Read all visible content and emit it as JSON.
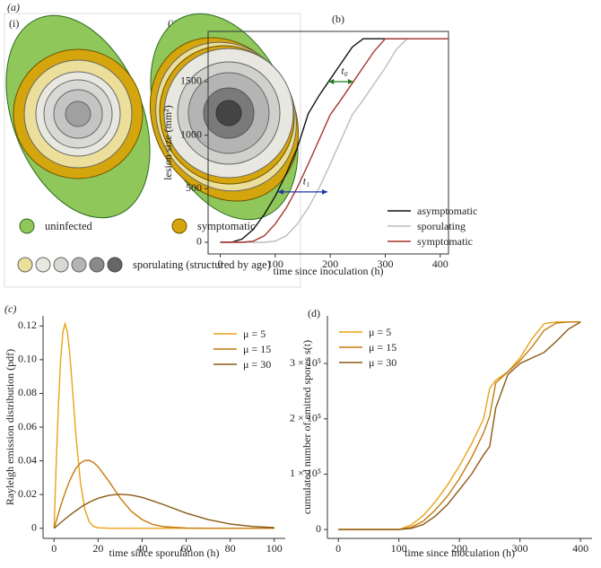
{
  "diagram": {
    "panel_label": "(a)",
    "sub_labels": [
      "(i)",
      "(ii)"
    ],
    "legend": [
      "uninfected",
      "symptomatic",
      "sporulating (structured by age)"
    ]
  },
  "chart_data": [
    {
      "type": "line",
      "panel_label": "(b)",
      "xlabel": "time since inoculation (h)",
      "ylabel": "lesion size (mm²)",
      "xlim": [
        -22,
        415
      ],
      "ylim": [
        -109,
        1969
      ],
      "xticks": [
        0,
        100,
        200,
        300,
        400
      ],
      "yticks": [
        0,
        500,
        1000,
        1500
      ],
      "frame": true,
      "legend": "lower right",
      "x": [
        0,
        20,
        40,
        60,
        80,
        100,
        120,
        140,
        160,
        180,
        200,
        220,
        240,
        260,
        280,
        300,
        320,
        340,
        360,
        380,
        400,
        415
      ],
      "series": [
        {
          "name": "asymptomatic",
          "color": "#111111",
          "values": [
            0,
            0,
            30,
            120,
            260,
            430,
            640,
            880,
            1200,
            1372,
            1522,
            1672,
            1822,
            1900,
            1900,
            1900,
            1900,
            1900,
            1900,
            1900,
            1900,
            1900
          ]
        },
        {
          "name": "sporulating",
          "color": "#bdbdbd",
          "values": [
            0,
            0,
            0,
            0,
            0,
            10,
            60,
            170,
            320,
            510,
            730,
            960,
            1190,
            1330,
            1480,
            1630,
            1800,
            1900,
            1900,
            1900,
            1900,
            1900
          ]
        },
        {
          "name": "symptomatic",
          "color": "#a8352e",
          "values": [
            0,
            0,
            0,
            10,
            60,
            170,
            320,
            510,
            730,
            960,
            1190,
            1335,
            1485,
            1635,
            1785,
            1900,
            1900,
            1900,
            1900,
            1900,
            1900,
            1900
          ]
        }
      ],
      "annotations": [
        {
          "text": "t₀",
          "color": "#1f7a1f",
          "x": [
            197,
            242
          ],
          "y": 1500
        },
        {
          "text": "t₁",
          "color": "#2233aa",
          "x": [
            105,
            195
          ],
          "y": 470
        }
      ]
    },
    {
      "type": "line",
      "panel_label": "(c)",
      "xlabel": "time since sporulation (h)",
      "ylabel": "Rayleigh emission distribution (pdf)",
      "xlim": [
        -5,
        105
      ],
      "ylim": [
        -0.006,
        0.126
      ],
      "xticks": [
        0,
        20,
        40,
        60,
        80,
        100
      ],
      "yticks": [
        0,
        0.02,
        0.04,
        0.06,
        0.08,
        {
          "value": 0.1,
          "label": "0.10"
        },
        0.12
      ],
      "frame": false,
      "legend": "upper right",
      "x": [
        0,
        1,
        2,
        3,
        4,
        5,
        6,
        7,
        8,
        9,
        10,
        12,
        14,
        16,
        18,
        20,
        25,
        30,
        35,
        40,
        45,
        50,
        60,
        70,
        80,
        90,
        100
      ],
      "series": [
        {
          "name": "μ = 5",
          "color": "#e8a317",
          "values": [
            0,
            0.0392,
            0.0738,
            0.1002,
            0.1162,
            0.1213,
            0.1168,
            0.1051,
            0.089,
            0.0713,
            0.0541,
            0.027,
            0.0111,
            0.0038,
            0.0011,
            0.0003,
            0,
            0,
            0,
            0,
            0,
            0,
            0,
            0,
            0,
            0,
            0
          ]
        },
        {
          "name": "μ = 15",
          "color": "#c67a10",
          "values": [
            0,
            0.0044,
            0.0088,
            0.0131,
            0.0172,
            0.021,
            0.0246,
            0.0279,
            0.0308,
            0.0334,
            0.0356,
            0.0387,
            0.0402,
            0.0403,
            0.0389,
            0.0365,
            0.0277,
            0.018,
            0.0102,
            0.0051,
            0.0022,
            0.0009,
            0.0001,
            0,
            0,
            0,
            0
          ]
        },
        {
          "name": "μ = 30",
          "color": "#8a5a12",
          "values": [
            0,
            0.0011,
            0.0022,
            0.0033,
            0.0044,
            0.0055,
            0.0065,
            0.0076,
            0.0086,
            0.0096,
            0.0105,
            0.0123,
            0.014,
            0.0154,
            0.0167,
            0.0178,
            0.0196,
            0.0202,
            0.0197,
            0.0183,
            0.0162,
            0.0139,
            0.009,
            0.0051,
            0.0025,
            0.0011,
            0.0004
          ]
        }
      ]
    },
    {
      "type": "line",
      "panel_label": "(d)",
      "xlabel": "time since inoculation (h)",
      "ylabel": "cumulated number of emitted spores s(t)",
      "xlim": [
        -18,
        419
      ],
      "ylim": [
        -16000,
        386000
      ],
      "xticks": [
        0,
        100,
        200,
        300,
        400
      ],
      "yticks": [
        0,
        {
          "value": 100000,
          "label": "1 × 10⁵"
        },
        {
          "value": 200000,
          "label": "2 × 10⁵"
        },
        {
          "value": 300000,
          "label": "3 × 10⁵"
        }
      ],
      "frame": false,
      "legend": "upper left",
      "x": [
        0,
        50,
        100,
        120,
        140,
        160,
        180,
        200,
        220,
        240,
        250,
        260,
        280,
        300,
        320,
        340,
        360,
        380,
        400
      ],
      "series": [
        {
          "name": "μ = 5",
          "color": "#e8a317",
          "values": [
            0,
            0,
            0,
            8000,
            25000,
            50000,
            80000,
            115000,
            155000,
            200000,
            255000,
            270000,
            285000,
            310000,
            345000,
            372000,
            375000,
            375000,
            375000
          ]
        },
        {
          "name": "μ = 15",
          "color": "#c67a10",
          "values": [
            0,
            0,
            0,
            4000,
            15000,
            35000,
            60000,
            92000,
            130000,
            175000,
            205000,
            265000,
            285000,
            305000,
            330000,
            360000,
            373000,
            375000,
            375000
          ]
        },
        {
          "name": "μ = 30",
          "color": "#8a5a12",
          "values": [
            0,
            0,
            0,
            2000,
            9000,
            24000,
            45000,
            72000,
            100000,
            135000,
            150000,
            220000,
            280000,
            300000,
            310000,
            320000,
            340000,
            362000,
            375000
          ]
        }
      ]
    }
  ]
}
